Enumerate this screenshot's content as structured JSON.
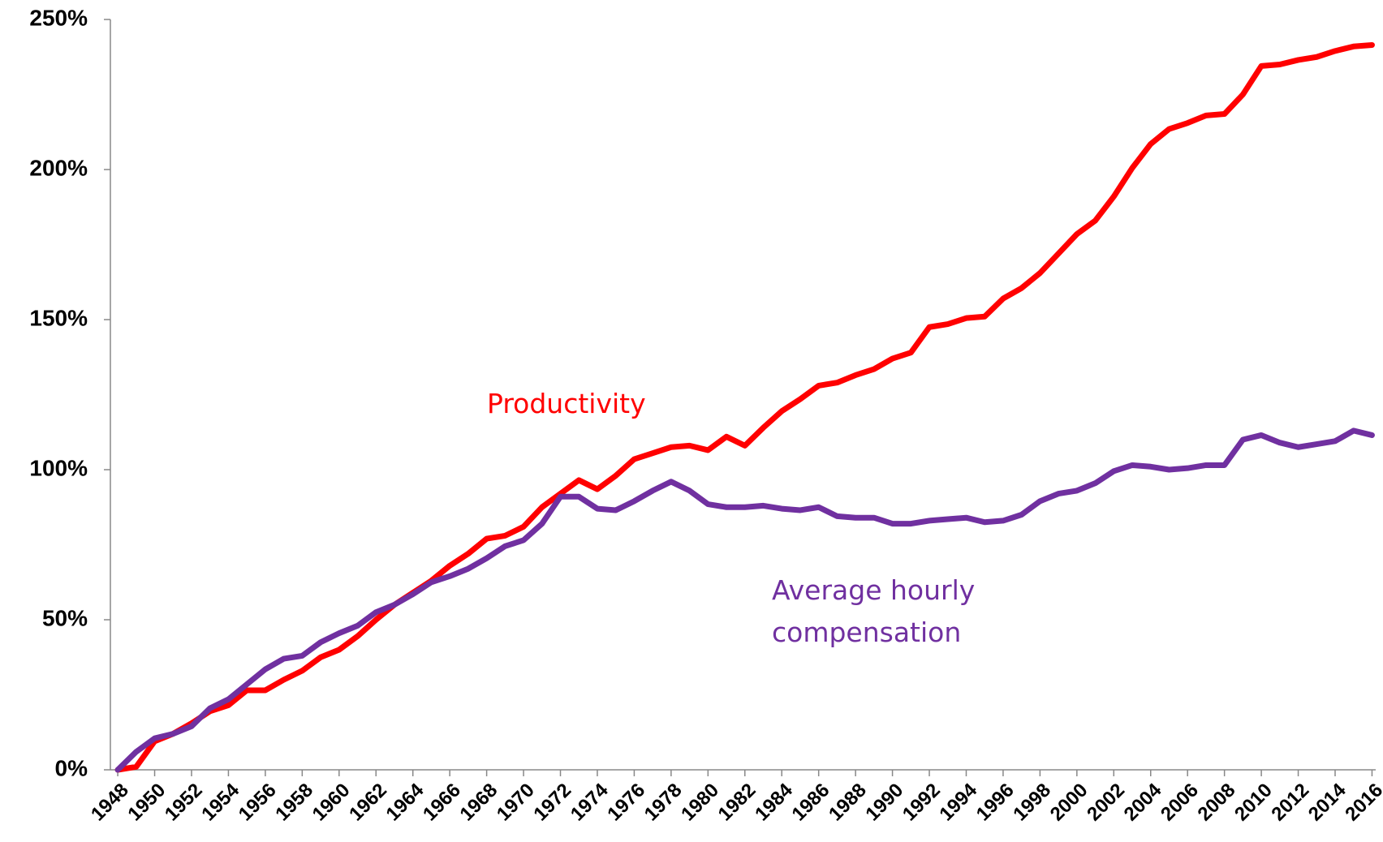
{
  "chart_data": {
    "type": "line",
    "x": [
      1948,
      1949,
      1950,
      1951,
      1952,
      1953,
      1954,
      1955,
      1956,
      1957,
      1958,
      1959,
      1960,
      1961,
      1962,
      1963,
      1964,
      1965,
      1966,
      1967,
      1968,
      1969,
      1970,
      1971,
      1972,
      1973,
      1974,
      1975,
      1976,
      1977,
      1978,
      1979,
      1980,
      1981,
      1982,
      1983,
      1984,
      1985,
      1986,
      1987,
      1988,
      1989,
      1990,
      1991,
      1992,
      1993,
      1994,
      1995,
      1996,
      1997,
      1998,
      1999,
      2000,
      2001,
      2002,
      2003,
      2004,
      2005,
      2006,
      2007,
      2008,
      2009,
      2010,
      2011,
      2012,
      2013,
      2014,
      2015,
      2016
    ],
    "series": [
      {
        "name": "Productivity",
        "color": "#ff0000",
        "values": [
          0,
          1,
          9.5,
          12,
          15.5,
          19.5,
          21.5,
          26.5,
          26.5,
          30,
          33,
          37.5,
          40,
          44.5,
          50,
          55,
          59,
          63,
          68,
          72,
          77,
          78,
          81,
          87.5,
          92,
          96.5,
          93.5,
          98,
          103.5,
          105.5,
          107.5,
          108,
          106.5,
          111,
          108,
          114,
          119.5,
          123.5,
          128,
          129,
          131.5,
          133.5,
          137,
          139,
          147.5,
          148.5,
          150.5,
          151,
          157,
          160.5,
          165.5,
          172,
          178.5,
          183,
          191,
          200.5,
          208.5,
          213.5,
          215.5,
          218,
          218.5,
          225,
          234.5,
          235,
          236.5,
          237.5,
          239.5,
          241,
          241.5
        ]
      },
      {
        "name": "Average hourly compensation",
        "color": "#7030a0",
        "values": [
          0,
          6,
          10.5,
          12,
          14.5,
          20.5,
          23.5,
          28.5,
          33.5,
          37,
          38,
          42.5,
          45.5,
          48,
          52.5,
          55,
          58.5,
          62.5,
          64.5,
          67,
          70.5,
          74.5,
          76.5,
          82,
          91,
          91,
          87,
          86.5,
          89.5,
          93,
          96,
          93,
          88.5,
          87.5,
          87.5,
          88,
          87,
          86.5,
          87.5,
          84.5,
          84,
          84,
          82,
          82,
          83,
          83.5,
          84,
          82.5,
          83,
          85,
          89.5,
          92,
          93,
          95.5,
          99.5,
          101.5,
          101,
          100,
          100.5,
          101.5,
          101.5,
          110,
          111.5,
          109,
          107.5,
          108.5,
          109.5,
          113,
          111.5
        ]
      }
    ],
    "xlim": [
      1947.6,
      2016.2
    ],
    "xticks": [
      1948,
      1950,
      1952,
      1954,
      1956,
      1958,
      1960,
      1962,
      1964,
      1966,
      1968,
      1970,
      1972,
      1974,
      1976,
      1978,
      1980,
      1982,
      1984,
      1986,
      1988,
      1990,
      1992,
      1994,
      1996,
      1998,
      2000,
      2002,
      2004,
      2006,
      2008,
      2010,
      2012,
      2014,
      2016
    ],
    "ylim": [
      0,
      250
    ],
    "yticks": [
      {
        "value": 0,
        "label": "0%"
      },
      {
        "value": 50,
        "label": "50%"
      },
      {
        "value": 100,
        "label": "100%"
      },
      {
        "value": 150,
        "label": "150%"
      },
      {
        "value": 200,
        "label": "200%"
      },
      {
        "value": 250,
        "label": "250%"
      }
    ],
    "grid": false
  }
}
